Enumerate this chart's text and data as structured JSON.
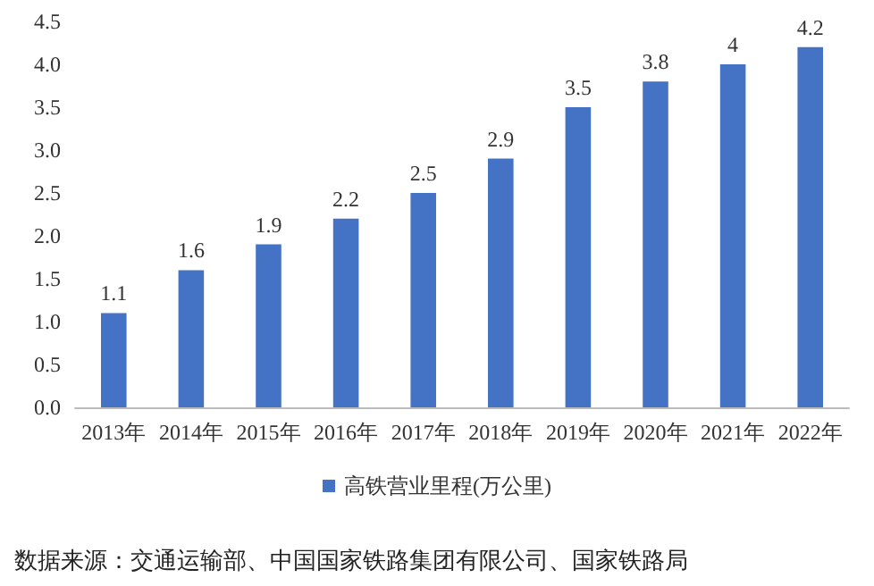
{
  "chart_data": {
    "type": "bar",
    "categories": [
      "2013年",
      "2014年",
      "2015年",
      "2016年",
      "2017年",
      "2018年",
      "2019年",
      "2020年",
      "2021年",
      "2022年"
    ],
    "series": [
      {
        "name": "高铁营业里程(万公里)",
        "color": "#4472c4",
        "values": [
          1.1,
          1.6,
          1.9,
          2.2,
          2.5,
          2.9,
          3.5,
          3.8,
          4,
          4.2
        ]
      }
    ],
    "ylim": [
      0,
      4.5
    ],
    "yticks": [
      {
        "value": 0,
        "label": "0.0"
      },
      {
        "value": 0.5,
        "label": "0.5"
      },
      {
        "value": 1,
        "label": "1.0"
      },
      {
        "value": 1.5,
        "label": "1.5"
      },
      {
        "value": 2,
        "label": "2.0"
      },
      {
        "value": 2.5,
        "label": "2.5"
      },
      {
        "value": 3,
        "label": "3.0"
      },
      {
        "value": 3.5,
        "label": "3.5"
      },
      {
        "value": 4,
        "label": "4.0"
      },
      {
        "value": 4.5,
        "label": "4.5"
      }
    ],
    "data_labels": true,
    "legend": "bottom",
    "grid": false,
    "annotations": [
      "数据来源：交通运输部、中国国家铁路集团有限公司、国家铁路局"
    ]
  }
}
